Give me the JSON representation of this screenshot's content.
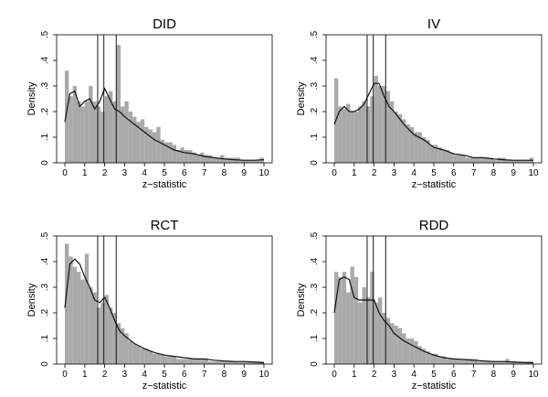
{
  "chart_data": [
    {
      "type": "bar",
      "title": "DID",
      "xlabel": "z−statistic",
      "ylabel": "Density",
      "xlim": [
        0,
        10
      ],
      "ylim": [
        0,
        0.5
      ],
      "xticks": [
        "0",
        "1",
        "2",
        "3",
        "4",
        "5",
        "6",
        "7",
        "8",
        "9",
        "10"
      ],
      "yticks": [
        "0",
        ".1",
        ".2",
        ".3",
        ".4",
        ".5"
      ],
      "reference_lines_x": [
        1.65,
        1.96,
        2.58
      ],
      "bin_width": 0.2,
      "histogram": [
        0.36,
        0.26,
        0.3,
        0.24,
        0.22,
        0.24,
        0.3,
        0.24,
        0.22,
        0.2,
        0.26,
        0.28,
        0.24,
        0.46,
        0.22,
        0.24,
        0.2,
        0.18,
        0.16,
        0.17,
        0.14,
        0.13,
        0.12,
        0.14,
        0.09,
        0.08,
        0.08,
        0.07,
        0.05,
        0.06,
        0.05,
        0.05,
        0.04,
        0.03,
        0.04,
        0.03,
        0.03,
        0.02,
        0.02,
        0.03,
        0.02,
        0.02,
        0.02,
        0.02,
        0.01,
        0.01,
        0.01,
        0.01,
        0.01,
        0.02
      ],
      "density_x": [
        0,
        0.25,
        0.5,
        0.75,
        1,
        1.25,
        1.5,
        1.75,
        2,
        2.25,
        2.5,
        2.75,
        3,
        3.5,
        4,
        4.5,
        5,
        5.5,
        6,
        6.5,
        7,
        7.5,
        8,
        8.5,
        9,
        9.5,
        10
      ],
      "density_y": [
        0.16,
        0.27,
        0.28,
        0.22,
        0.24,
        0.25,
        0.21,
        0.24,
        0.29,
        0.25,
        0.21,
        0.2,
        0.18,
        0.15,
        0.12,
        0.09,
        0.07,
        0.05,
        0.04,
        0.035,
        0.025,
        0.02,
        0.015,
        0.012,
        0.01,
        0.01,
        0.012
      ]
    },
    {
      "type": "bar",
      "title": "IV",
      "xlabel": "z−statistic",
      "ylabel": "Density",
      "xlim": [
        0,
        10
      ],
      "ylim": [
        0,
        0.5
      ],
      "xticks": [
        "0",
        "1",
        "2",
        "3",
        "4",
        "5",
        "6",
        "7",
        "8",
        "9",
        "10"
      ],
      "yticks": [
        "0",
        ".1",
        ".2",
        ".3",
        ".4",
        ".5"
      ],
      "reference_lines_x": [
        1.65,
        1.96,
        2.58
      ],
      "bin_width": 0.2,
      "histogram": [
        0.33,
        0.22,
        0.21,
        0.23,
        0.2,
        0.2,
        0.22,
        0.24,
        0.22,
        0.26,
        0.34,
        0.3,
        0.3,
        0.28,
        0.24,
        0.2,
        0.19,
        0.17,
        0.15,
        0.14,
        0.12,
        0.12,
        0.1,
        0.09,
        0.07,
        0.07,
        0.06,
        0.05,
        0.05,
        0.04,
        0.03,
        0.03,
        0.03,
        0.02,
        0.02,
        0.02,
        0.02,
        0.02,
        0.02,
        0.02,
        0.01,
        0.02,
        0.02,
        0.01,
        0.01,
        0.01,
        0.01,
        0.01,
        0.01,
        0.02
      ],
      "density_x": [
        0,
        0.25,
        0.5,
        0.75,
        1,
        1.25,
        1.5,
        1.75,
        2,
        2.25,
        2.5,
        2.75,
        3,
        3.5,
        4,
        4.5,
        5,
        5.5,
        6,
        6.5,
        7,
        7.5,
        8,
        8.5,
        9,
        9.5,
        10
      ],
      "density_y": [
        0.15,
        0.2,
        0.22,
        0.2,
        0.2,
        0.21,
        0.23,
        0.27,
        0.31,
        0.31,
        0.26,
        0.22,
        0.2,
        0.15,
        0.11,
        0.09,
        0.06,
        0.05,
        0.035,
        0.03,
        0.02,
        0.02,
        0.015,
        0.012,
        0.01,
        0.01,
        0.01
      ]
    },
    {
      "type": "bar",
      "title": "RCT",
      "xlabel": "z−statistic",
      "ylabel": "Density",
      "xlim": [
        0,
        10
      ],
      "ylim": [
        0,
        0.5
      ],
      "xticks": [
        "0",
        "1",
        "2",
        "3",
        "4",
        "5",
        "6",
        "7",
        "8",
        "9",
        "10"
      ],
      "yticks": [
        "0",
        ".1",
        ".2",
        ".3",
        ".4",
        ".5"
      ],
      "reference_lines_x": [
        1.65,
        1.96,
        2.58
      ],
      "bin_width": 0.2,
      "histogram": [
        0.47,
        0.42,
        0.38,
        0.36,
        0.33,
        0.43,
        0.3,
        0.28,
        0.22,
        0.24,
        0.27,
        0.22,
        0.2,
        0.16,
        0.14,
        0.12,
        0.09,
        0.08,
        0.07,
        0.06,
        0.06,
        0.05,
        0.04,
        0.04,
        0.04,
        0.03,
        0.03,
        0.03,
        0.02,
        0.02,
        0.02,
        0.02,
        0.02,
        0.02,
        0.02,
        0.02,
        0.01,
        0.01,
        0.01,
        0.01,
        0.01,
        0.01,
        0.01,
        0.01,
        0.01,
        0.01,
        0.01,
        0.01,
        0.01,
        0.01
      ],
      "density_x": [
        0,
        0.25,
        0.5,
        0.75,
        1,
        1.25,
        1.5,
        1.75,
        2,
        2.25,
        2.5,
        2.75,
        3,
        3.5,
        4,
        4.5,
        5,
        5.5,
        6,
        6.5,
        7,
        7.5,
        8,
        8.5,
        9,
        9.5,
        10
      ],
      "density_y": [
        0.22,
        0.39,
        0.41,
        0.39,
        0.34,
        0.3,
        0.25,
        0.24,
        0.26,
        0.22,
        0.17,
        0.13,
        0.11,
        0.08,
        0.06,
        0.045,
        0.035,
        0.03,
        0.025,
        0.02,
        0.02,
        0.015,
        0.012,
        0.01,
        0.01,
        0.008,
        0.005
      ]
    },
    {
      "type": "bar",
      "title": "RDD",
      "xlabel": "z−statistic",
      "ylabel": "Density",
      "xlim": [
        0,
        10
      ],
      "ylim": [
        0,
        0.5
      ],
      "xticks": [
        "0",
        "1",
        "2",
        "3",
        "4",
        "5",
        "6",
        "7",
        "8",
        "9",
        "10"
      ],
      "yticks": [
        "0",
        ".1",
        ".2",
        ".3",
        ".4",
        ".5"
      ],
      "reference_lines_x": [
        1.65,
        1.96,
        2.58
      ],
      "bin_width": 0.2,
      "histogram": [
        0.36,
        0.34,
        0.36,
        0.28,
        0.38,
        0.34,
        0.24,
        0.3,
        0.26,
        0.36,
        0.24,
        0.26,
        0.2,
        0.18,
        0.16,
        0.15,
        0.14,
        0.12,
        0.1,
        0.1,
        0.09,
        0.07,
        0.06,
        0.05,
        0.04,
        0.04,
        0.03,
        0.03,
        0.02,
        0.02,
        0.02,
        0.02,
        0.02,
        0.02,
        0.02,
        0.02,
        0.01,
        0.01,
        0.01,
        0.01,
        0.01,
        0.01,
        0.01,
        0.02,
        0.01,
        0.01,
        0.01,
        0.01,
        0.01,
        0.01
      ],
      "density_x": [
        0,
        0.25,
        0.5,
        0.75,
        1,
        1.25,
        1.5,
        1.75,
        2,
        2.25,
        2.5,
        2.75,
        3,
        3.5,
        4,
        4.5,
        5,
        5.5,
        6,
        6.5,
        7,
        7.5,
        8,
        8.5,
        9,
        9.5,
        10
      ],
      "density_y": [
        0.2,
        0.33,
        0.34,
        0.33,
        0.26,
        0.25,
        0.25,
        0.25,
        0.25,
        0.2,
        0.17,
        0.15,
        0.12,
        0.09,
        0.07,
        0.05,
        0.035,
        0.025,
        0.02,
        0.018,
        0.015,
        0.012,
        0.01,
        0.01,
        0.008,
        0.006,
        0.005
      ]
    }
  ]
}
